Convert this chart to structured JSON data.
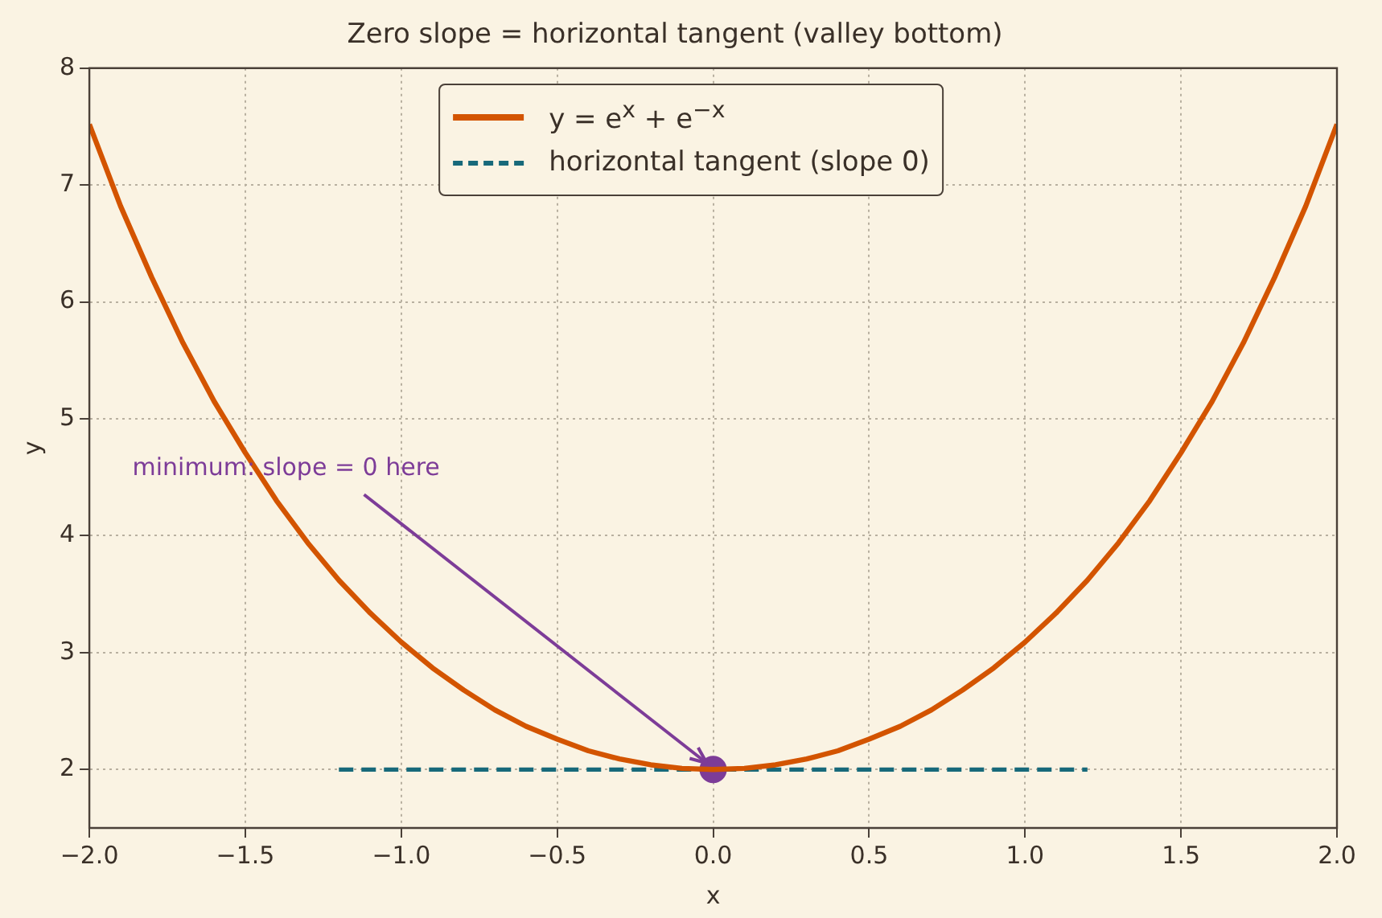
{
  "chart_data": {
    "type": "line",
    "title": "Zero slope = horizontal tangent (valley bottom)",
    "xlabel": "x",
    "ylabel": "y",
    "series": [
      {
        "name": "y = e$^{x}$ + e$^{−x}$",
        "color": "#d35400",
        "type": "line",
        "line_style": "solid",
        "x": [
          -2,
          -1.9,
          -1.8,
          -1.7,
          -1.6,
          -1.5,
          -1.4,
          -1.3,
          -1.2,
          -1.1,
          -1,
          -0.9,
          -0.8,
          -0.7,
          -0.6,
          -0.5,
          -0.4,
          -0.3,
          -0.2,
          -0.1,
          0,
          0.1,
          0.2,
          0.3,
          0.4,
          0.5,
          0.6,
          0.7,
          0.8,
          0.9,
          1,
          1.1,
          1.2,
          1.3,
          1.4,
          1.5,
          1.6,
          1.7,
          1.8,
          1.9,
          2
        ],
        "values": [
          7.52,
          6.82,
          6.21,
          5.65,
          5.15,
          4.71,
          4.3,
          3.94,
          3.62,
          3.34,
          3.09,
          2.87,
          2.68,
          2.51,
          2.37,
          2.26,
          2.16,
          2.09,
          2.04,
          2.01,
          2,
          2.01,
          2.04,
          2.09,
          2.16,
          2.26,
          2.37,
          2.51,
          2.68,
          2.87,
          3.09,
          3.34,
          3.62,
          3.94,
          4.3,
          4.71,
          5.15,
          5.65,
          6.21,
          6.82,
          7.52
        ]
      },
      {
        "name": "horizontal tangent (slope 0)",
        "color": "#17697a",
        "type": "line",
        "line_style": "dashed",
        "x": [
          -1.2,
          1.2
        ],
        "values": [
          2,
          2
        ]
      },
      {
        "color": "#7d3c98",
        "type": "scatter",
        "marker": "circle",
        "x": [
          0
        ],
        "values": [
          2
        ]
      }
    ],
    "annotations": [
      {
        "text": "minimum: slope = 0 here",
        "x": 0,
        "y": 2
      }
    ],
    "xlim": [
      -2,
      2
    ],
    "xticks": [
      {
        "value": -2,
        "label": "−2.0"
      },
      {
        "value": -1.5,
        "label": "−1.5"
      },
      {
        "value": -1,
        "label": "−1.0"
      },
      {
        "value": -0.5,
        "label": "−0.5"
      },
      {
        "value": 0,
        "label": "0.0"
      },
      {
        "value": 0.5,
        "label": "0.5"
      },
      {
        "value": 1,
        "label": "1.0"
      },
      {
        "value": 1.5,
        "label": "1.5"
      },
      {
        "value": 2,
        "label": "2.0"
      }
    ],
    "ylim": [
      1.5,
      8
    ],
    "yticks": [
      2,
      3,
      4,
      5,
      6,
      7,
      8
    ],
    "grid": true,
    "legend": "top"
  }
}
